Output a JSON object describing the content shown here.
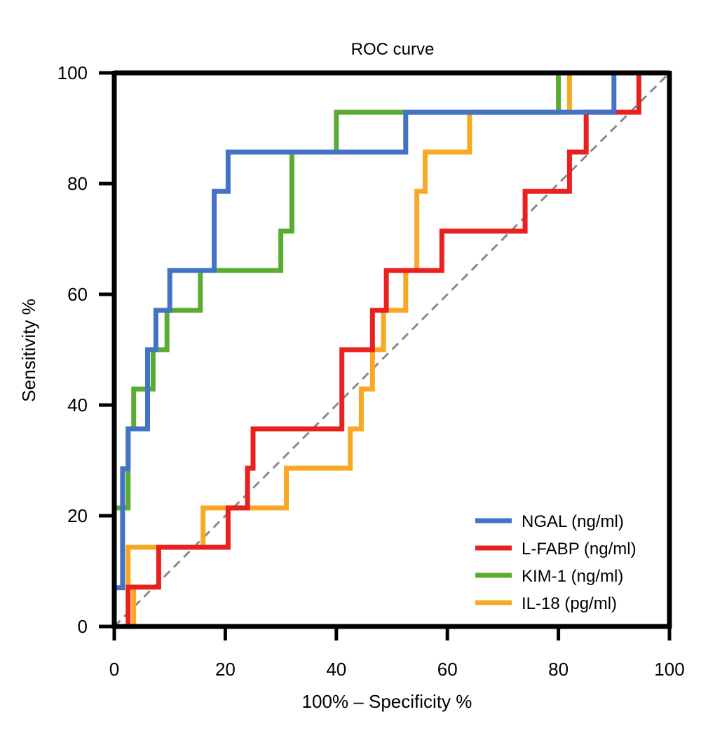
{
  "chart_data": {
    "type": "line",
    "title": "ROC curve",
    "xlabel": "100% – Specificity %",
    "ylabel": "Sensitivity %",
    "xlim": [
      0,
      100
    ],
    "ylim": [
      0,
      100
    ],
    "xticks": [
      0,
      20,
      40,
      60,
      80,
      100
    ],
    "yticks": [
      0,
      20,
      40,
      60,
      80,
      100
    ],
    "grid": false,
    "legend_position": "bottom-right",
    "reference_line": {
      "x": [
        0,
        100
      ],
      "y": [
        0,
        100
      ],
      "style": "dashed",
      "color": "#8a8a8a"
    },
    "series": [
      {
        "name": "NGAL (ng/ml)",
        "color": "#4472c4",
        "x": [
          0,
          0,
          1.5,
          1.5,
          2.5,
          2.5,
          6,
          6,
          7.5,
          7.5,
          10,
          10,
          18,
          18,
          20.5,
          20.5,
          52.5,
          52.5,
          90,
          90,
          100
        ],
        "y": [
          0,
          7,
          7,
          28.5,
          28.5,
          35.7,
          35.7,
          50,
          50,
          57.1,
          57.1,
          64.3,
          64.3,
          78.6,
          78.6,
          85.7,
          85.7,
          92.9,
          92.9,
          100,
          100
        ]
      },
      {
        "name": "L-FABP (ng/ml)",
        "color": "#e8201e",
        "x": [
          0.5,
          2.5,
          2.5,
          8,
          8,
          20.5,
          20.5,
          24,
          24,
          25,
          25,
          41,
          41,
          46.5,
          46.5,
          49,
          49,
          59,
          59,
          74,
          74,
          82,
          82,
          85,
          85,
          90,
          90,
          94.5,
          94.5,
          100
        ],
        "y": [
          0,
          0,
          7.1,
          7.1,
          14.3,
          14.3,
          21.4,
          21.4,
          28.6,
          28.6,
          35.7,
          35.7,
          50,
          50,
          57.1,
          57.1,
          64.3,
          64.3,
          71.4,
          71.4,
          78.6,
          78.6,
          85.7,
          85.7,
          92.9,
          92.9,
          92.9,
          92.9,
          100,
          100
        ]
      },
      {
        "name": "KIM-1 (ng/ml)",
        "color": "#5aab32",
        "x": [
          0,
          0,
          0,
          2.5,
          2.5,
          3.5,
          3.5,
          7,
          7,
          9.5,
          9.5,
          15.5,
          15.5,
          30,
          30,
          32,
          32,
          40,
          40,
          52.5,
          52.5,
          80,
          80,
          89,
          89,
          100
        ],
        "y": [
          0,
          7.1,
          21.4,
          21.4,
          35.7,
          35.7,
          42.9,
          42.9,
          50,
          50,
          57.1,
          57.1,
          64.3,
          64.3,
          71.4,
          71.4,
          85.7,
          85.7,
          92.9,
          92.9,
          92.9,
          92.9,
          100,
          100,
          100,
          100
        ]
      },
      {
        "name": "IL-18 (pg/ml)",
        "color": "#f9a825",
        "x": [
          3.5,
          3.5,
          2.5,
          2.5,
          7.5,
          7.5,
          16,
          16,
          26,
          26,
          31,
          31,
          42.5,
          42.5,
          44.5,
          44.5,
          46.5,
          46.5,
          48.5,
          48.5,
          52.5,
          52.5,
          54.5,
          54.5,
          56,
          56,
          64,
          64,
          82,
          82,
          100
        ],
        "y": [
          0,
          7.1,
          7.1,
          14.3,
          14.3,
          14.3,
          14.3,
          21.4,
          21.4,
          21.4,
          21.4,
          28.6,
          28.6,
          35.7,
          35.7,
          42.9,
          42.9,
          50,
          50,
          57.1,
          57.1,
          64.3,
          64.3,
          78.6,
          78.6,
          85.7,
          85.7,
          92.9,
          92.9,
          100,
          100
        ]
      }
    ]
  }
}
